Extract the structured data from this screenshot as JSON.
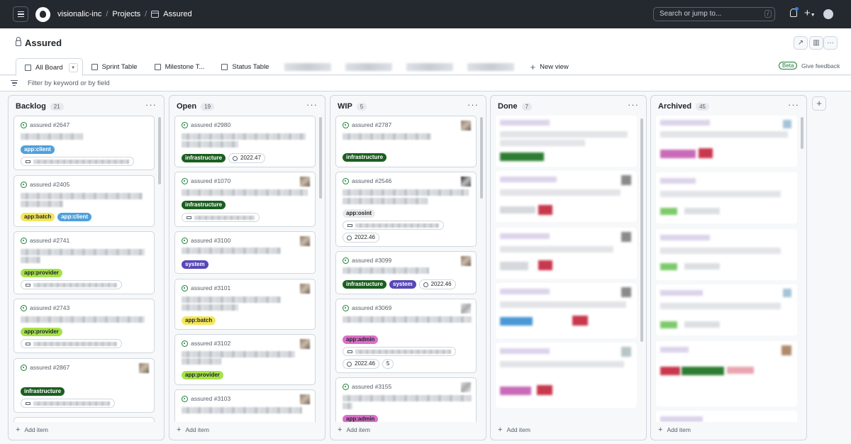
{
  "header": {
    "org": "visionalic-inc",
    "projects": "Projects",
    "repo": "Assured",
    "search_placeholder": "Search or jump to...",
    "slash": "/"
  },
  "project": {
    "title": "Assured",
    "tabs": [
      {
        "label": "All Board"
      },
      {
        "label": "Sprint Table"
      },
      {
        "label": "Milestone T..."
      },
      {
        "label": "Status Table"
      }
    ],
    "new_view": "New view",
    "beta": "Beta",
    "feedback": "Give feedback",
    "filter_placeholder": "Filter by keyword or by field"
  },
  "columns": [
    {
      "name": "Backlog",
      "count": "21",
      "cards": [
        {
          "id": "assured #2647",
          "labels": [
            "app:client"
          ]
        },
        {
          "id": "assured #2405",
          "labels": [
            "app:batch",
            "app:client"
          ]
        },
        {
          "id": "assured #2741",
          "labels": [
            "app:provider"
          ]
        },
        {
          "id": "assured #2743",
          "labels": [
            "app:provider"
          ]
        },
        {
          "id": "assured #2867",
          "labels": [
            "infrastructure"
          ]
        }
      ]
    },
    {
      "name": "Open",
      "count": "19",
      "cards": [
        {
          "id": "assured #2980",
          "labels": [
            "infrastructure"
          ],
          "iteration": "2022.47"
        },
        {
          "id": "assured #1070",
          "labels": [
            "infrastructure"
          ]
        },
        {
          "id": "assured #3100",
          "labels": [
            "system"
          ]
        },
        {
          "id": "assured #3101",
          "labels": [
            "app:batch"
          ]
        },
        {
          "id": "assured #3102",
          "labels": [
            "app:provider"
          ]
        },
        {
          "id": "assured #3103",
          "labels": []
        }
      ]
    },
    {
      "name": "WIP",
      "count": "5",
      "cards": [
        {
          "id": "assured #2787",
          "labels": [
            "infrastructure"
          ]
        },
        {
          "id": "assured #2546",
          "labels": [
            "app:osint"
          ],
          "iteration": "2022.46"
        },
        {
          "id": "assured #3099",
          "labels": [
            "infrastructure",
            "system"
          ],
          "iteration": "2022.46"
        },
        {
          "id": "assured #3069",
          "labels": [
            "app:admin"
          ],
          "iteration": "2022.46",
          "points": "5"
        },
        {
          "id": "assured #3155",
          "labels": [
            "app:admin"
          ]
        }
      ]
    },
    {
      "name": "Done",
      "count": "7"
    },
    {
      "name": "Archived",
      "count": "45"
    }
  ],
  "add_item": "Add item",
  "label_colors": {
    "app:client": "#4ea0dc",
    "app:batch": "#f3e65a",
    "app:provider": "#a6e24a",
    "infrastructure": "#1b5e20",
    "system": "#5747b8",
    "app:osint": "#eaeaea",
    "app:admin": "#db6fc8"
  },
  "icons": [
    "hamburger-icon",
    "github-logo-icon",
    "table-icon",
    "bell-icon",
    "plus-icon",
    "lock-icon",
    "filter-icon",
    "kebab-icon",
    "issue-open-icon",
    "iteration-icon",
    "milestone-icon"
  ]
}
